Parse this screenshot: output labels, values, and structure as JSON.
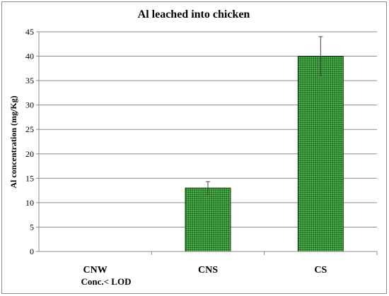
{
  "chart_data": {
    "type": "bar",
    "title": "Al leached into chicken",
    "ylabel": "Al concentration  (mg/Kg)",
    "xlabel": "",
    "categories": [
      "CNW",
      "CNS",
      "CS"
    ],
    "values": [
      0,
      13,
      40
    ],
    "error": [
      0,
      1.3,
      4
    ],
    "ylim": [
      0,
      45
    ],
    "yticks": [
      "0",
      "5",
      "10",
      "15",
      "20",
      "25",
      "30",
      "35",
      "40",
      "45"
    ],
    "grid": true,
    "bar_color": "#2e8b2e",
    "annotation": "Conc.< LOD"
  }
}
